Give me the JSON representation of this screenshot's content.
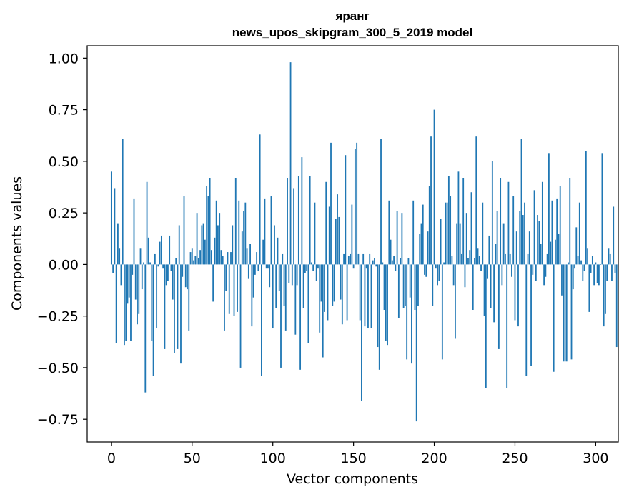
{
  "chart_data": {
    "type": "bar",
    "title_line1": "яранг",
    "title_line2": "news_upos_skipgram_300_5_2019 model",
    "xlabel": "Vector components",
    "ylabel": "Components values",
    "xlim": [
      -15,
      314
    ],
    "ylim": [
      -0.86,
      1.06
    ],
    "x_ticks": [
      0,
      50,
      100,
      150,
      200,
      250,
      300
    ],
    "x_tick_labels": [
      "0",
      "50",
      "100",
      "150",
      "200",
      "250",
      "300"
    ],
    "y_ticks": [
      -0.75,
      -0.5,
      -0.25,
      0.0,
      0.25,
      0.5,
      0.75,
      1.0
    ],
    "y_tick_labels": [
      "−0.75",
      "−0.50",
      "−0.25",
      "0.00",
      "0.25",
      "0.50",
      "0.75",
      "1.00"
    ],
    "bar_color": "#1f77b4",
    "values": [
      0.45,
      -0.04,
      0.37,
      -0.38,
      0.2,
      0.08,
      -0.1,
      0.61,
      -0.39,
      -0.37,
      -0.19,
      -0.16,
      -0.37,
      -0.05,
      0.32,
      -0.17,
      -0.29,
      -0.24,
      0.08,
      -0.12,
      0.01,
      -0.62,
      0.4,
      0.13,
      0.01,
      -0.37,
      -0.54,
      0.05,
      -0.31,
      -0.01,
      0.11,
      0.14,
      -0.02,
      -0.41,
      -0.1,
      -0.08,
      0.14,
      -0.03,
      -0.17,
      -0.43,
      0.03,
      -0.41,
      0.19,
      -0.48,
      -0.06,
      0.33,
      -0.11,
      -0.12,
      -0.32,
      0.06,
      0.08,
      0.02,
      0.04,
      0.25,
      0.03,
      0.07,
      0.19,
      0.2,
      0.12,
      0.38,
      0.33,
      0.42,
      0.07,
      -0.18,
      0.13,
      0.31,
      0.19,
      0.25,
      0.07,
      0.04,
      -0.32,
      -0.13,
      0.06,
      -0.24,
      0.06,
      0.19,
      -0.25,
      0.42,
      -0.23,
      0.31,
      -0.5,
      0.16,
      0.26,
      0.3,
      0.08,
      -0.07,
      0.1,
      -0.3,
      -0.16,
      -0.05,
      0.06,
      -0.03,
      0.63,
      -0.54,
      0.12,
      0.32,
      -0.02,
      -0.02,
      -0.11,
      0.33,
      -0.31,
      0.19,
      -0.21,
      0.13,
      -0.13,
      -0.5,
      0.05,
      -0.2,
      -0.32,
      0.42,
      -0.09,
      0.98,
      -0.1,
      0.37,
      -0.34,
      -0.1,
      0.43,
      -0.51,
      0.52,
      -0.21,
      -0.04,
      -0.03,
      -0.38,
      0.43,
      0.01,
      -0.03,
      0.3,
      -0.08,
      -0.02,
      -0.33,
      -0.18,
      -0.45,
      -0.23,
      0.4,
      -0.27,
      0.28,
      0.59,
      -0.2,
      -0.18,
      0.22,
      0.34,
      0.23,
      -0.17,
      -0.29,
      0.05,
      0.53,
      -0.27,
      0.04,
      0.05,
      0.29,
      -0.02,
      0.56,
      0.59,
      0.05,
      -0.27,
      -0.66,
      0.05,
      -0.3,
      -0.02,
      -0.31,
      0.05,
      -0.31,
      0.02,
      0.03,
      -0.01,
      -0.4,
      -0.51,
      0.61,
      0.01,
      -0.22,
      -0.37,
      -0.39,
      0.31,
      0.12,
      0.02,
      0.04,
      -0.03,
      0.26,
      -0.26,
      0.03,
      0.25,
      -0.21,
      -0.2,
      -0.46,
      0.03,
      -0.16,
      -0.48,
      0.31,
      -0.22,
      -0.76,
      -0.2,
      0.15,
      0.2,
      0.29,
      -0.05,
      -0.06,
      0.16,
      0.38,
      0.62,
      -0.2,
      0.75,
      -0.02,
      -0.1,
      -0.08,
      0.22,
      -0.46,
      0.01,
      0.3,
      0.3,
      0.43,
      0.33,
      0.04,
      -0.1,
      -0.36,
      0.2,
      0.45,
      0.2,
      0.05,
      0.42,
      -0.11,
      0.25,
      0.03,
      0.07,
      0.35,
      -0.22,
      0.03,
      0.62,
      0.08,
      0.04,
      -0.03,
      0.3,
      -0.25,
      -0.6,
      -0.07,
      0.14,
      -0.21,
      0.5,
      -0.28,
      0.1,
      0.26,
      -0.41,
      0.42,
      -0.1,
      0.2,
      0.05,
      -0.6,
      0.4,
      0.05,
      -0.06,
      0.33,
      -0.27,
      0.16,
      -0.3,
      0.26,
      0.61,
      0.24,
      0.3,
      -0.54,
      0.05,
      0.16,
      -0.49,
      -0.05,
      0.36,
      -0.08,
      0.24,
      0.21,
      0.1,
      0.4,
      -0.1,
      -0.06,
      0.05,
      0.54,
      0.11,
      0.31,
      -0.52,
      0.12,
      0.32,
      0.15,
      0.38,
      -0.15,
      -0.47,
      -0.47,
      -0.47,
      0.01,
      0.42,
      -0.46,
      -0.12,
      -0.02,
      0.18,
      0.04,
      0.3,
      0.02,
      -0.08,
      -0.03,
      0.55,
      0.08,
      -0.23,
      -0.04,
      0.04,
      -0.1,
      0.01,
      -0.09,
      -0.1,
      0.0,
      0.54,
      -0.3,
      -0.24,
      -0.08,
      0.08,
      0.05,
      -0.08,
      0.28,
      -0.04,
      -0.4
    ]
  }
}
